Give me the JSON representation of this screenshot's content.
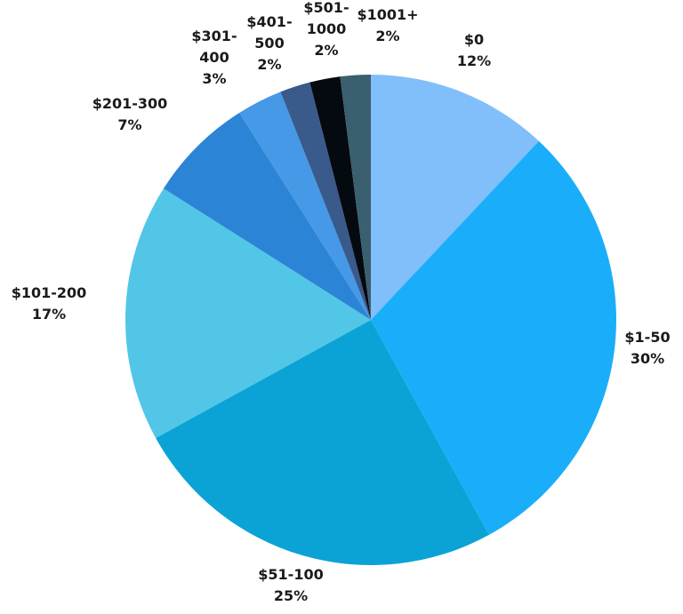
{
  "chart_data": {
    "type": "pie",
    "categories": [
      "$0",
      "$1-50",
      "$51-100",
      "$101-200",
      "$201-300",
      "$301-400",
      "$401-500",
      "$501-1000",
      "$1001+"
    ],
    "values": [
      12,
      30,
      25,
      17,
      7,
      3,
      2,
      2,
      2
    ],
    "value_labels": [
      "12%",
      "30%",
      "25%",
      "17%",
      "7%",
      "3%",
      "2%",
      "2%",
      "2%"
    ],
    "colors": [
      "#80bffa",
      "#1aaefa",
      "#0ba3d6",
      "#52c6e6",
      "#2c84d6",
      "#4599e6",
      "#3a5a8c",
      "#050a10",
      "#3a6070"
    ]
  }
}
